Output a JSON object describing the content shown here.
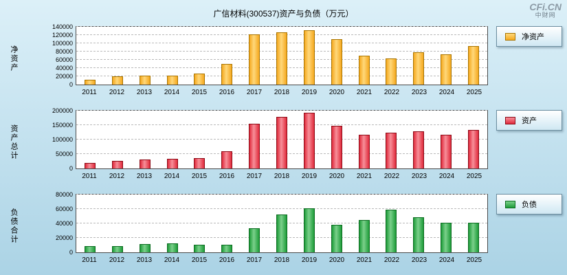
{
  "title": "广信材料(300537)资产与负债（万元）",
  "logo": {
    "main": "CFi.CN",
    "sub": "中财网"
  },
  "chart_data": [
    {
      "id": "net-assets",
      "type": "bar",
      "title": "净资产",
      "ylabel": "净资产",
      "legend": "净资产",
      "colors": {
        "fill": "#F5A91F",
        "light": "#FFD87A",
        "border": "#A87400"
      },
      "ylim": [
        0,
        140000
      ],
      "ystep": 20000,
      "grid": true,
      "legend_position": "right",
      "categories": [
        "2011",
        "2012",
        "2013",
        "2014",
        "2015",
        "2016",
        "2017",
        "2018",
        "2019",
        "2020",
        "2021",
        "2022",
        "2023",
        "2024",
        "2025"
      ],
      "values": [
        11000,
        20000,
        22000,
        21000,
        26000,
        50000,
        121000,
        126000,
        132000,
        110000,
        70000,
        64000,
        79000,
        74000,
        93000
      ]
    },
    {
      "id": "total-assets",
      "type": "bar",
      "title": "资产总计",
      "ylabel": "资产总计",
      "legend": "资产",
      "colors": {
        "fill": "#E02A3C",
        "light": "#F78F99",
        "border": "#8C0A16"
      },
      "ylim": [
        0,
        200000
      ],
      "ystep": 50000,
      "grid": true,
      "legend_position": "right",
      "categories": [
        "2011",
        "2012",
        "2013",
        "2014",
        "2015",
        "2016",
        "2017",
        "2018",
        "2019",
        "2020",
        "2021",
        "2022",
        "2023",
        "2024",
        "2025"
      ],
      "values": [
        19000,
        27000,
        31000,
        33000,
        35000,
        59000,
        155000,
        179000,
        193000,
        148000,
        116000,
        125000,
        128000,
        117000,
        134000
      ]
    },
    {
      "id": "total-liabilities",
      "type": "bar",
      "title": "负债合计",
      "ylabel": "负债合计",
      "legend": "负债",
      "colors": {
        "fill": "#1E9C39",
        "light": "#7BD08B",
        "border": "#0A6B1F"
      },
      "ylim": [
        0,
        80000
      ],
      "ystep": 20000,
      "grid": true,
      "legend_position": "right",
      "categories": [
        "2011",
        "2012",
        "2013",
        "2014",
        "2015",
        "2016",
        "2017",
        "2018",
        "2019",
        "2020",
        "2021",
        "2022",
        "2023",
        "2024",
        "2025"
      ],
      "values": [
        9000,
        8500,
        11500,
        12500,
        10500,
        10500,
        33000,
        52000,
        61000,
        38000,
        45000,
        59000,
        48500,
        41000,
        41000
      ]
    }
  ]
}
